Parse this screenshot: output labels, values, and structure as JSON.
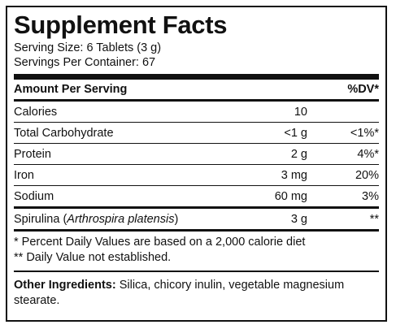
{
  "title": "Supplement Facts",
  "serving_size": "Serving Size: 6 Tablets (3 g)",
  "servings_per_container": "Servings Per Container: 67",
  "header": {
    "amount": "Amount Per Serving",
    "dv": "%DV*"
  },
  "rows": [
    {
      "name": "Calories",
      "amount": "10",
      "dv": ""
    },
    {
      "name": "Total Carbohydrate",
      "amount": "<1 g",
      "dv": "<1%*"
    },
    {
      "name": "Protein",
      "amount": "2 g",
      "dv": "4%*"
    },
    {
      "name": "Iron",
      "amount": "3 mg",
      "dv": "20%"
    },
    {
      "name": "Sodium",
      "amount": "60 mg",
      "dv": "3%"
    }
  ],
  "spirulina": {
    "name": "Spirulina (",
    "latin": "Arthrospira platensis",
    "close": ")",
    "amount": "3 g",
    "dv": "**"
  },
  "footnotes": [
    "* Percent Daily Values are based on a 2,000 calorie diet",
    "** Daily Value not established."
  ],
  "other_ingredients": {
    "label": "Other Ingredients:",
    "text": " Silica, chicory inulin, vegetable magnesium stearate."
  }
}
